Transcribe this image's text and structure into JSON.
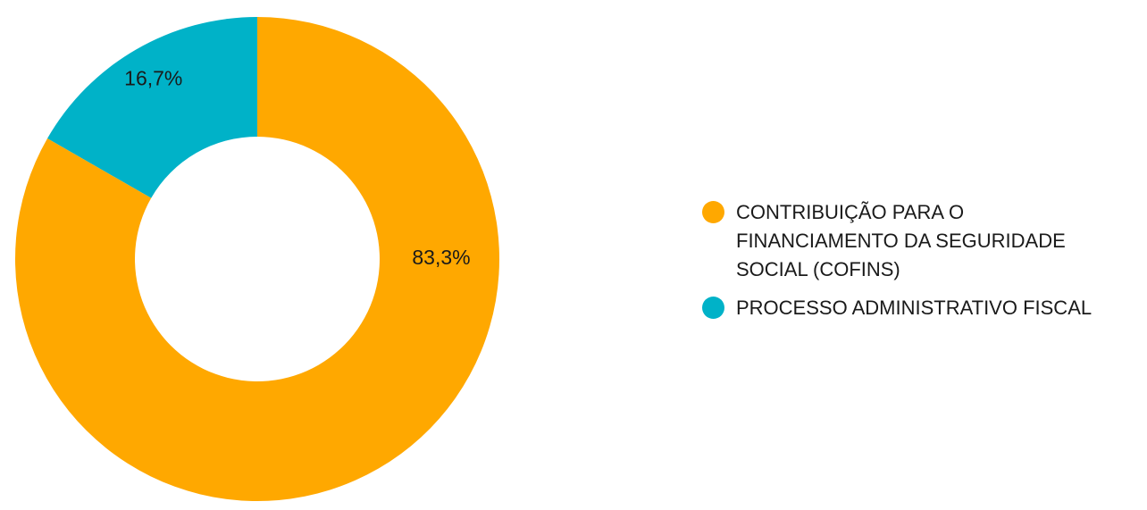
{
  "chart_data": {
    "type": "pie",
    "style": "donut",
    "legend_position": "right",
    "slices": [
      {
        "name": "PROCESSO ADMINISTRATIVO FISCAL",
        "value": 16.7,
        "label": "16,7%",
        "color": "#00b2c8"
      },
      {
        "name": "CONTRIBUIÇÃO PARA O\nFINANCIAMENTO DA SEGURIDADE\nSOCIAL (COFINS)",
        "value": 83.3,
        "label": "83,3%",
        "color": "#ffa800"
      }
    ],
    "legend": [
      {
        "text": "CONTRIBUIÇÃO PARA O\nFINANCIAMENTO DA SEGURIDADE\nSOCIAL (COFINS)",
        "color": "#ffa800"
      },
      {
        "text": "PROCESSO ADMINISTRATIVO FISCAL",
        "color": "#00b2c8"
      }
    ]
  }
}
